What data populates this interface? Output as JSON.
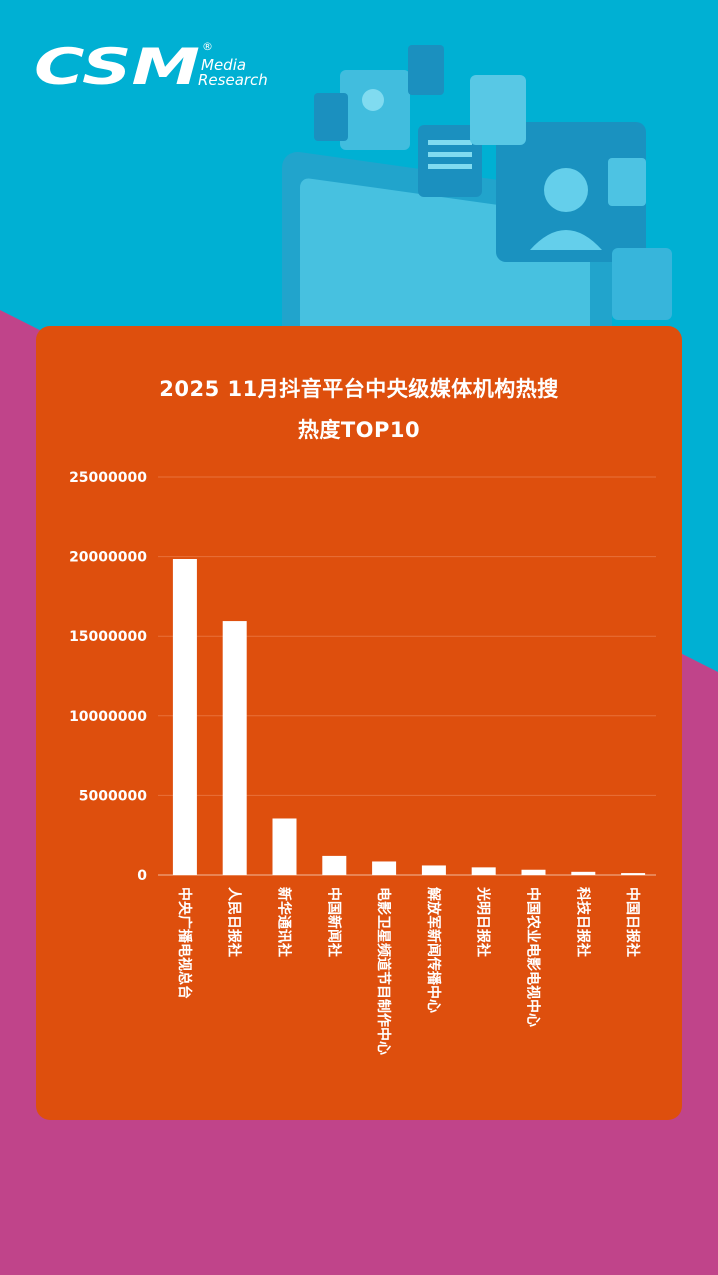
{
  "brand": {
    "logo_main": "CSM",
    "logo_sub1": "Media",
    "logo_sub2": "Research",
    "logo_mark": "®"
  },
  "colors": {
    "top_bg": "#00b0d3",
    "bottom_bg": "#c0448a",
    "card": "#de4f0d",
    "bar": "#ffffff",
    "grid": "#e8703a"
  },
  "chart_data": {
    "type": "bar",
    "title": "2025 11月抖音平台中央级媒体机构热搜",
    "subtitle": "热度TOP10",
    "categories": [
      "中央广播电视总台",
      "人民日报社",
      "新华通讯社",
      "中国新闻社",
      "电影卫星频道节目制作中心",
      "解放军新闻传播中心",
      "光明日报社",
      "中国农业电影电视中心",
      "科技日报社",
      "中国日报社"
    ],
    "values": [
      19850000,
      15950000,
      3550000,
      1200000,
      850000,
      600000,
      480000,
      330000,
      200000,
      120000
    ],
    "ylim": [
      0,
      25000000
    ],
    "yticks": [
      0,
      5000000,
      10000000,
      15000000,
      20000000,
      25000000
    ],
    "grid": true,
    "legend": "none"
  }
}
